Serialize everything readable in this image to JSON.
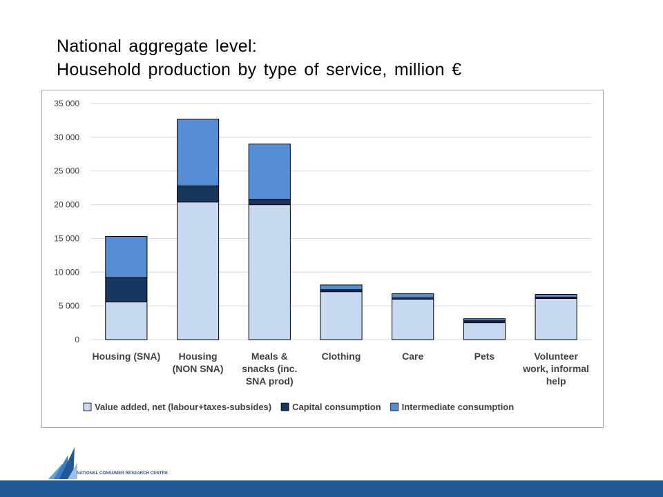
{
  "title": {
    "line1": "National aggregate level:",
    "line2": "Household production by type of service, million €"
  },
  "logo": {
    "text": "NATIONAL CONSUMER RESEARCH CENTRE"
  },
  "colors": {
    "value_added": "#c6d9f1",
    "capital": "#17375e",
    "intermediate": "#558ed5",
    "gridline": "#d9d9d9",
    "footer": "#1f5896"
  },
  "chart_data": {
    "type": "bar",
    "stacked": true,
    "categories": [
      [
        "Housing (SNA)"
      ],
      [
        "Housing",
        "(NON SNA)"
      ],
      [
        "Meals &",
        "snacks (inc.",
        "SNA prod)"
      ],
      [
        "Clothing"
      ],
      [
        "Care"
      ],
      [
        "Pets"
      ],
      [
        "Volunteer",
        "work, informal",
        "help"
      ]
    ],
    "series": [
      {
        "name": "Value added, net (labour+taxes-subsides)",
        "values": [
          5600,
          20400,
          20000,
          7100,
          6000,
          2500,
          6100
        ]
      },
      {
        "name": "Capital consumption",
        "values": [
          3600,
          2400,
          800,
          300,
          200,
          300,
          200
        ]
      },
      {
        "name": "Intermediate consumption",
        "values": [
          6100,
          9900,
          8200,
          700,
          600,
          300,
          400
        ]
      }
    ],
    "ylim": [
      0,
      35000
    ],
    "yticks": [
      0,
      5000,
      10000,
      15000,
      20000,
      25000,
      30000,
      35000
    ],
    "ytick_labels": [
      "0",
      "5 000",
      "10 000",
      "15 000",
      "20 000",
      "25 000",
      "30 000",
      "35 000"
    ],
    "grid": true,
    "legend_position": "bottom"
  }
}
